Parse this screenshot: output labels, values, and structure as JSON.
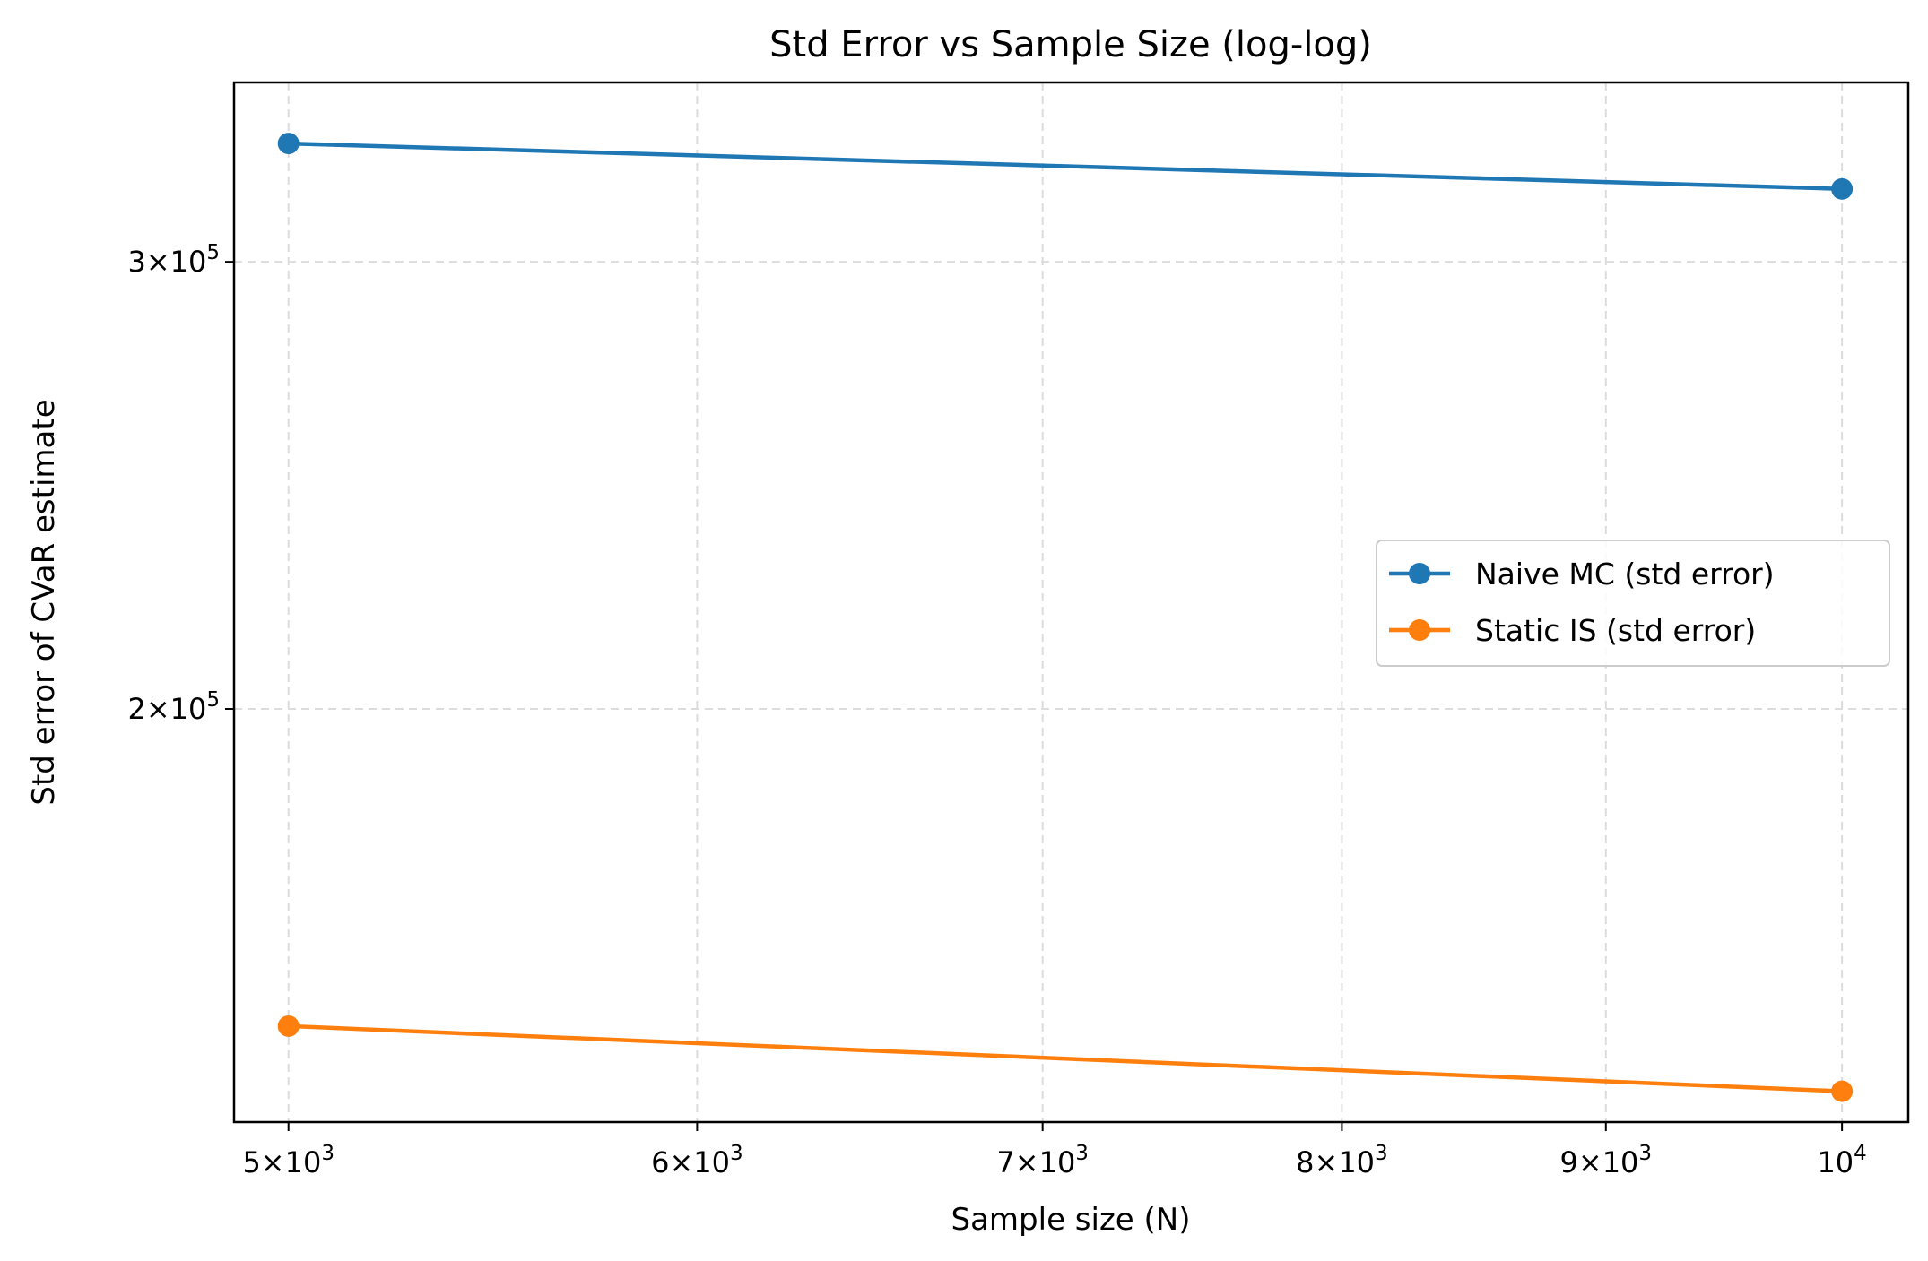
{
  "chart_data": {
    "type": "line",
    "title": "Std Error vs Sample Size (log-log)",
    "xlabel": "Sample size (N)",
    "ylabel": "Std error of CVaR estimate",
    "xscale": "log",
    "yscale": "log",
    "xlim": [
      4880,
      10300
    ],
    "ylim": [
      137500,
      353000
    ],
    "x": [
      5000,
      10000
    ],
    "series": [
      {
        "name": "Naive MC (std error)",
        "color": "#1f77b4",
        "values": [
          334000,
          320500
        ]
      },
      {
        "name": "Static IS (std error)",
        "color": "#ff7f0e",
        "values": [
          150000,
          141400
        ]
      }
    ],
    "x_ticks": [
      {
        "value": 5000,
        "mant": "5",
        "exp": "3"
      },
      {
        "value": 6000,
        "mant": "6",
        "exp": "3"
      },
      {
        "value": 7000,
        "mant": "7",
        "exp": "3"
      },
      {
        "value": 8000,
        "mant": "8",
        "exp": "3"
      },
      {
        "value": 9000,
        "mant": "9",
        "exp": "3"
      },
      {
        "value": 10000,
        "mant": "",
        "exp": "4"
      }
    ],
    "y_ticks": [
      {
        "value": 300000,
        "mant": "3",
        "exp": "5"
      },
      {
        "value": 200000,
        "mant": "2",
        "exp": "5"
      }
    ],
    "grid": true,
    "legend_position": "center-right"
  }
}
